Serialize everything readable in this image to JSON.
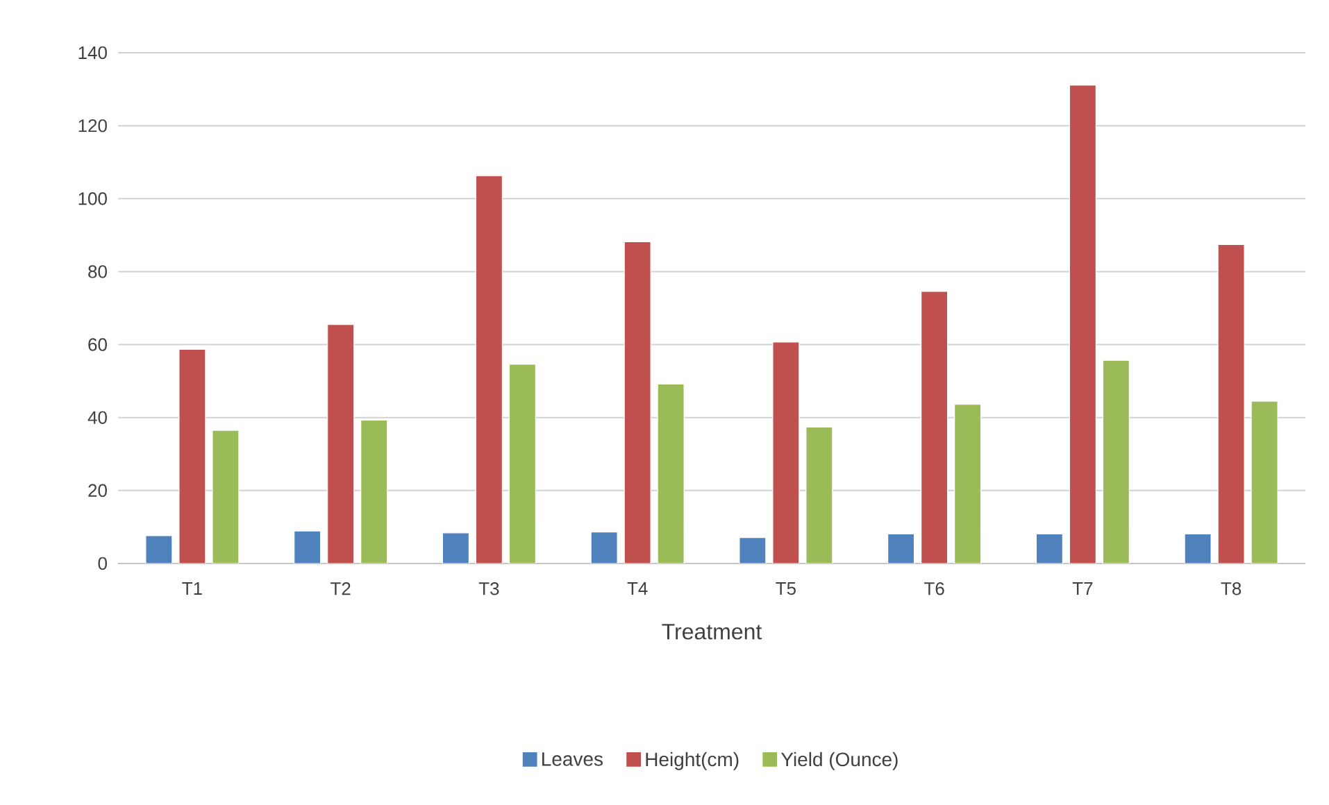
{
  "chart_data": {
    "type": "bar",
    "xlabel": "Treatment",
    "categories": [
      "T1",
      "T2",
      "T3",
      "T4",
      "T5",
      "T6",
      "T7",
      "T8"
    ],
    "series": [
      {
        "name": "Leaves",
        "color": "#4f81bd",
        "values": [
          7.6,
          8.9,
          8.4,
          8.6,
          7.1,
          8.1,
          8.1,
          8.1
        ]
      },
      {
        "name": "Height(cm)",
        "color": "#c0504d",
        "values": [
          58.7,
          65.5,
          106.3,
          88.2,
          60.7,
          74.6,
          131.1,
          87.4
        ]
      },
      {
        "name": "Yield (Ounce)",
        "color": "#9bbb59",
        "values": [
          36.5,
          39.3,
          54.6,
          49.2,
          37.4,
          43.6,
          55.7,
          44.5
        ]
      }
    ],
    "ylim": [
      0,
      140
    ],
    "yticks": [
      0,
      20,
      40,
      60,
      80,
      100,
      120,
      140
    ],
    "grid": "y",
    "legend": "bottom"
  }
}
